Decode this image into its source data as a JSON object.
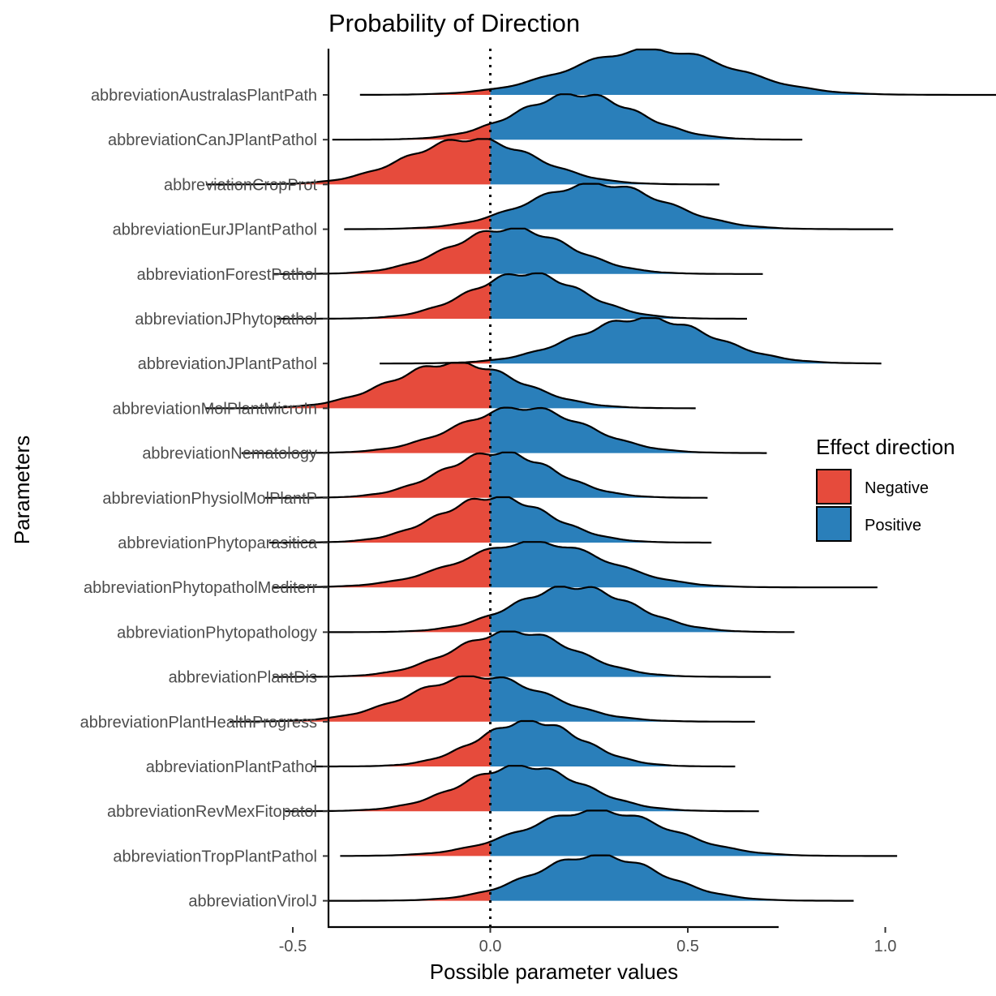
{
  "chart_data": {
    "type": "area",
    "title": "Probability of Direction",
    "xlabel": "Possible parameter values",
    "ylabel": "Parameters",
    "xlim": [
      -0.82,
      1.46
    ],
    "xticks": [
      -0.5,
      0.0,
      0.5,
      1.0
    ],
    "xtick_labels": [
      "-0.5",
      "0.0",
      "0.5",
      "1.0"
    ],
    "reference_line": 0,
    "grid": false,
    "legend": {
      "title": "Effect direction",
      "position": "right",
      "items": [
        {
          "label": "Negative",
          "color": "#E64B3C"
        },
        {
          "label": "Positive",
          "color": "#2A7FBA"
        }
      ]
    },
    "parameters": [
      {
        "name": "abbreviationAustralasPlantPath",
        "min": -0.33,
        "max": 1.36,
        "peak": 0.41,
        "sd": 0.2
      },
      {
        "name": "abbreviationCanJPlantPathol",
        "min": -0.4,
        "max": 0.79,
        "peak": 0.22,
        "sd": 0.15
      },
      {
        "name": "abbreviationCropProt",
        "min": -0.72,
        "max": 0.58,
        "peak": -0.05,
        "sd": 0.16
      },
      {
        "name": "abbreviationEurJPlantPathol",
        "min": -0.37,
        "max": 1.02,
        "peak": 0.27,
        "sd": 0.17
      },
      {
        "name": "abbreviationForestPathol",
        "min": -0.55,
        "max": 0.69,
        "peak": 0.05,
        "sd": 0.15
      },
      {
        "name": "abbreviationJPhytopathol",
        "min": -0.54,
        "max": 0.65,
        "peak": 0.09,
        "sd": 0.14
      },
      {
        "name": "abbreviationJPlantPathol",
        "min": -0.28,
        "max": 0.99,
        "peak": 0.39,
        "sd": 0.17
      },
      {
        "name": "abbreviationMolPlantMicroIn",
        "min": -0.72,
        "max": 0.52,
        "peak": -0.09,
        "sd": 0.16
      },
      {
        "name": "abbreviationNematology",
        "min": -0.63,
        "max": 0.7,
        "peak": 0.08,
        "sd": 0.16
      },
      {
        "name": "abbreviationPhysiolMolPlantP",
        "min": -0.57,
        "max": 0.55,
        "peak": 0.02,
        "sd": 0.14
      },
      {
        "name": "abbreviationPhytoparasitica",
        "min": -0.56,
        "max": 0.56,
        "peak": 0.01,
        "sd": 0.14
      },
      {
        "name": "abbreviationPhytopatholMediterr",
        "min": -0.55,
        "max": 0.98,
        "peak": 0.11,
        "sd": 0.18
      },
      {
        "name": "abbreviationPhytopathology",
        "min": -0.41,
        "max": 0.77,
        "peak": 0.21,
        "sd": 0.15
      },
      {
        "name": "abbreviationPlantDis",
        "min": -0.55,
        "max": 0.71,
        "peak": 0.06,
        "sd": 0.15
      },
      {
        "name": "abbreviationPlantHealthProgress",
        "min": -0.66,
        "max": 0.67,
        "peak": -0.03,
        "sd": 0.17
      },
      {
        "name": "abbreviationPlantPathol",
        "min": -0.45,
        "max": 0.62,
        "peak": 0.1,
        "sd": 0.13
      },
      {
        "name": "abbreviationRevMexFitopatol",
        "min": -0.52,
        "max": 0.68,
        "peak": 0.08,
        "sd": 0.15
      },
      {
        "name": "abbreviationTropPlantPathol",
        "min": -0.38,
        "max": 1.03,
        "peak": 0.27,
        "sd": 0.18
      },
      {
        "name": "abbreviationVirolJ",
        "min": -0.41,
        "max": 0.92,
        "peak": 0.27,
        "sd": 0.16
      }
    ]
  }
}
